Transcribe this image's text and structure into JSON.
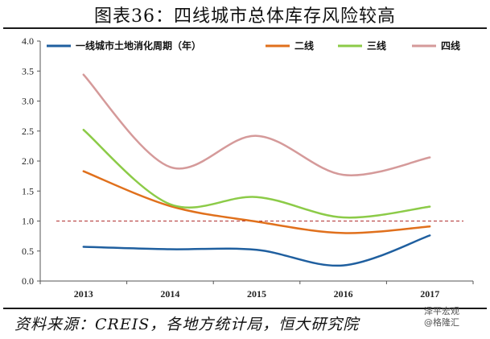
{
  "title": "图表36：四线城市总体库存风险较高",
  "source": "资料来源：CREIS，各地方统计局，恒大研究院",
  "watermark": {
    "line1": "泽平宏观",
    "line2": "@格隆汇"
  },
  "chart_data": {
    "type": "line",
    "x": [
      "2013",
      "2014",
      "2015",
      "2016",
      "2017"
    ],
    "ylim": [
      0,
      4.0
    ],
    "yticks": [
      "0.0",
      "0.5",
      "1.0",
      "1.5",
      "2.0",
      "2.5",
      "3.0",
      "3.5",
      "4.0"
    ],
    "reference_line": {
      "value": 1.0,
      "style": "dashed",
      "color": "#b03030"
    },
    "legend_position": "top",
    "series": [
      {
        "name": "一线城市土地消化周期（年）",
        "color": "#1f5f9f",
        "values": [
          0.57,
          0.53,
          0.52,
          0.26,
          0.76
        ]
      },
      {
        "name": "二线",
        "color": "#e0701c",
        "values": [
          1.83,
          1.25,
          0.99,
          0.8,
          0.91
        ]
      },
      {
        "name": "三线",
        "color": "#8ccb48",
        "values": [
          2.52,
          1.28,
          1.4,
          1.06,
          1.24
        ]
      },
      {
        "name": "四线",
        "color": "#d59a9a",
        "values": [
          3.44,
          1.9,
          2.42,
          1.77,
          2.06
        ]
      }
    ]
  }
}
